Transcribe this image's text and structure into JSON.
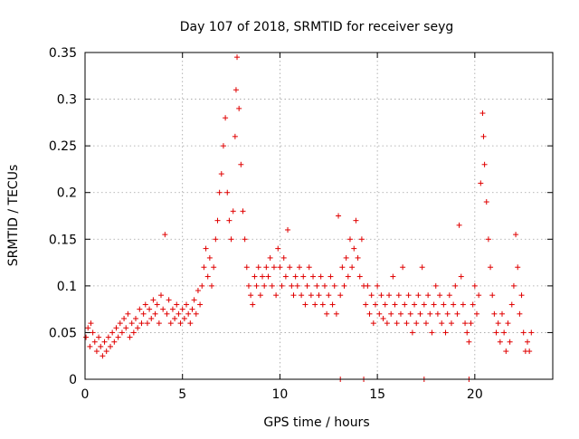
{
  "chart_data": {
    "type": "scatter",
    "title": "Day 107 of 2018, SRMTID for receiver seyg",
    "xlabel": "GPS time / hours",
    "ylabel": "SRMTID / TECUs",
    "xlim": [
      0,
      24
    ],
    "ylim": [
      0,
      0.35
    ],
    "xticks": [
      0,
      5,
      10,
      15,
      20
    ],
    "xtick_labels": [
      "0",
      "5",
      "10",
      "15",
      "20"
    ],
    "yticks": [
      0,
      0.05,
      0.1,
      0.15,
      0.2,
      0.25,
      0.3,
      0.35
    ],
    "ytick_labels": [
      "0",
      "0.05",
      "0.1",
      "0.15",
      "0.2",
      "0.25",
      "0.3",
      "0.35"
    ],
    "grid": true,
    "marker": "+",
    "color": "#e00000",
    "series": [
      {
        "name": "SRMTID",
        "points": [
          [
            0.05,
            0.045
          ],
          [
            0.15,
            0.055
          ],
          [
            0.25,
            0.035
          ],
          [
            0.3,
            0.06
          ],
          [
            0.4,
            0.05
          ],
          [
            0.5,
            0.04
          ],
          [
            0.6,
            0.03
          ],
          [
            0.7,
            0.045
          ],
          [
            0.8,
            0.035
          ],
          [
            0.9,
            0.025
          ],
          [
            1.0,
            0.04
          ],
          [
            1.1,
            0.03
          ],
          [
            1.2,
            0.045
          ],
          [
            1.3,
            0.035
          ],
          [
            1.4,
            0.05
          ],
          [
            1.5,
            0.04
          ],
          [
            1.6,
            0.055
          ],
          [
            1.7,
            0.045
          ],
          [
            1.8,
            0.06
          ],
          [
            1.9,
            0.05
          ],
          [
            2.0,
            0.065
          ],
          [
            2.1,
            0.055
          ],
          [
            2.2,
            0.07
          ],
          [
            2.3,
            0.045
          ],
          [
            2.4,
            0.06
          ],
          [
            2.5,
            0.05
          ],
          [
            2.6,
            0.065
          ],
          [
            2.7,
            0.055
          ],
          [
            2.8,
            0.075
          ],
          [
            2.9,
            0.06
          ],
          [
            3.0,
            0.07
          ],
          [
            3.1,
            0.08
          ],
          [
            3.2,
            0.06
          ],
          [
            3.3,
            0.075
          ],
          [
            3.4,
            0.065
          ],
          [
            3.5,
            0.085
          ],
          [
            3.6,
            0.07
          ],
          [
            3.7,
            0.08
          ],
          [
            3.8,
            0.06
          ],
          [
            3.9,
            0.09
          ],
          [
            4.0,
            0.075
          ],
          [
            4.1,
            0.155
          ],
          [
            4.2,
            0.07
          ],
          [
            4.3,
            0.085
          ],
          [
            4.4,
            0.06
          ],
          [
            4.5,
            0.075
          ],
          [
            4.6,
            0.065
          ],
          [
            4.7,
            0.08
          ],
          [
            4.8,
            0.07
          ],
          [
            4.9,
            0.06
          ],
          [
            5.0,
            0.075
          ],
          [
            5.1,
            0.065
          ],
          [
            5.2,
            0.08
          ],
          [
            5.3,
            0.07
          ],
          [
            5.4,
            0.06
          ],
          [
            5.5,
            0.075
          ],
          [
            5.6,
            0.085
          ],
          [
            5.7,
            0.07
          ],
          [
            5.8,
            0.095
          ],
          [
            5.9,
            0.08
          ],
          [
            6.0,
            0.1
          ],
          [
            6.1,
            0.12
          ],
          [
            6.2,
            0.14
          ],
          [
            6.3,
            0.11
          ],
          [
            6.4,
            0.13
          ],
          [
            6.5,
            0.1
          ],
          [
            6.6,
            0.12
          ],
          [
            6.7,
            0.15
          ],
          [
            6.8,
            0.17
          ],
          [
            6.9,
            0.2
          ],
          [
            7.0,
            0.22
          ],
          [
            7.1,
            0.25
          ],
          [
            7.2,
            0.28
          ],
          [
            7.3,
            0.2
          ],
          [
            7.4,
            0.17
          ],
          [
            7.5,
            0.15
          ],
          [
            7.6,
            0.18
          ],
          [
            7.7,
            0.26
          ],
          [
            7.75,
            0.31
          ],
          [
            7.8,
            0.345
          ],
          [
            7.9,
            0.29
          ],
          [
            8.0,
            0.23
          ],
          [
            8.1,
            0.18
          ],
          [
            8.2,
            0.15
          ],
          [
            8.3,
            0.12
          ],
          [
            8.4,
            0.1
          ],
          [
            8.5,
            0.09
          ],
          [
            8.6,
            0.08
          ],
          [
            8.7,
            0.11
          ],
          [
            8.8,
            0.1
          ],
          [
            8.9,
            0.12
          ],
          [
            9.0,
            0.09
          ],
          [
            9.1,
            0.11
          ],
          [
            9.2,
            0.1
          ],
          [
            9.3,
            0.12
          ],
          [
            9.4,
            0.11
          ],
          [
            9.5,
            0.13
          ],
          [
            9.6,
            0.1
          ],
          [
            9.7,
            0.12
          ],
          [
            9.8,
            0.09
          ],
          [
            9.9,
            0.14
          ],
          [
            10.0,
            0.12
          ],
          [
            10.1,
            0.1
          ],
          [
            10.2,
            0.13
          ],
          [
            10.3,
            0.11
          ],
          [
            10.4,
            0.16
          ],
          [
            10.5,
            0.12
          ],
          [
            10.6,
            0.1
          ],
          [
            10.7,
            0.09
          ],
          [
            10.8,
            0.11
          ],
          [
            10.9,
            0.1
          ],
          [
            11.0,
            0.12
          ],
          [
            11.1,
            0.09
          ],
          [
            11.2,
            0.11
          ],
          [
            11.3,
            0.08
          ],
          [
            11.4,
            0.1
          ],
          [
            11.5,
            0.12
          ],
          [
            11.6,
            0.09
          ],
          [
            11.7,
            0.11
          ],
          [
            11.8,
            0.08
          ],
          [
            11.9,
            0.1
          ],
          [
            12.0,
            0.09
          ],
          [
            12.1,
            0.11
          ],
          [
            12.2,
            0.08
          ],
          [
            12.3,
            0.1
          ],
          [
            12.4,
            0.07
          ],
          [
            12.5,
            0.09
          ],
          [
            12.6,
            0.11
          ],
          [
            12.7,
            0.08
          ],
          [
            12.8,
            0.1
          ],
          [
            12.9,
            0.07
          ],
          [
            13.0,
            0.175
          ],
          [
            13.1,
            0.09
          ],
          [
            13.2,
            0.12
          ],
          [
            13.3,
            0.1
          ],
          [
            13.4,
            0.13
          ],
          [
            13.5,
            0.11
          ],
          [
            13.6,
            0.15
          ],
          [
            13.7,
            0.12
          ],
          [
            13.8,
            0.14
          ],
          [
            13.9,
            0.17
          ],
          [
            14.0,
            0.13
          ],
          [
            14.1,
            0.11
          ],
          [
            14.2,
            0.15
          ],
          [
            14.3,
            0.1
          ],
          [
            14.4,
            0.08
          ],
          [
            14.5,
            0.1
          ],
          [
            14.6,
            0.07
          ],
          [
            14.7,
            0.09
          ],
          [
            14.8,
            0.06
          ],
          [
            14.9,
            0.08
          ],
          [
            15.0,
            0.1
          ],
          [
            15.1,
            0.07
          ],
          [
            15.2,
            0.09
          ],
          [
            15.3,
            0.065
          ],
          [
            15.4,
            0.08
          ],
          [
            15.5,
            0.06
          ],
          [
            15.6,
            0.09
          ],
          [
            15.7,
            0.07
          ],
          [
            15.8,
            0.11
          ],
          [
            15.9,
            0.08
          ],
          [
            16.0,
            0.06
          ],
          [
            16.1,
            0.09
          ],
          [
            16.2,
            0.07
          ],
          [
            16.3,
            0.12
          ],
          [
            16.4,
            0.08
          ],
          [
            16.5,
            0.06
          ],
          [
            16.6,
            0.09
          ],
          [
            16.7,
            0.07
          ],
          [
            16.8,
            0.05
          ],
          [
            16.9,
            0.08
          ],
          [
            17.0,
            0.06
          ],
          [
            17.1,
            0.09
          ],
          [
            17.2,
            0.07
          ],
          [
            17.3,
            0.12
          ],
          [
            17.4,
            0.08
          ],
          [
            17.5,
            0.06
          ],
          [
            17.6,
            0.09
          ],
          [
            17.7,
            0.07
          ],
          [
            17.8,
            0.05
          ],
          [
            17.9,
            0.08
          ],
          [
            18.0,
            0.1
          ],
          [
            18.1,
            0.07
          ],
          [
            18.2,
            0.09
          ],
          [
            18.3,
            0.06
          ],
          [
            18.4,
            0.08
          ],
          [
            18.5,
            0.05
          ],
          [
            18.6,
            0.07
          ],
          [
            18.7,
            0.09
          ],
          [
            18.8,
            0.06
          ],
          [
            18.9,
            0.08
          ],
          [
            19.0,
            0.1
          ],
          [
            19.1,
            0.07
          ],
          [
            19.2,
            0.165
          ],
          [
            19.3,
            0.11
          ],
          [
            19.4,
            0.08
          ],
          [
            19.5,
            0.06
          ],
          [
            19.6,
            0.05
          ],
          [
            19.7,
            0.04
          ],
          [
            19.8,
            0.06
          ],
          [
            19.9,
            0.08
          ],
          [
            20.0,
            0.1
          ],
          [
            20.1,
            0.07
          ],
          [
            20.2,
            0.09
          ],
          [
            20.3,
            0.21
          ],
          [
            20.4,
            0.285
          ],
          [
            20.45,
            0.26
          ],
          [
            20.5,
            0.23
          ],
          [
            20.6,
            0.19
          ],
          [
            20.7,
            0.15
          ],
          [
            20.8,
            0.12
          ],
          [
            20.9,
            0.09
          ],
          [
            21.0,
            0.07
          ],
          [
            21.1,
            0.05
          ],
          [
            21.2,
            0.06
          ],
          [
            21.3,
            0.04
          ],
          [
            21.4,
            0.07
          ],
          [
            21.5,
            0.05
          ],
          [
            21.6,
            0.03
          ],
          [
            21.7,
            0.06
          ],
          [
            21.8,
            0.04
          ],
          [
            21.9,
            0.08
          ],
          [
            22.0,
            0.1
          ],
          [
            22.1,
            0.155
          ],
          [
            22.2,
            0.12
          ],
          [
            22.3,
            0.07
          ],
          [
            22.4,
            0.09
          ],
          [
            22.5,
            0.05
          ],
          [
            22.6,
            0.03
          ],
          [
            22.7,
            0.04
          ],
          [
            22.8,
            0.03
          ],
          [
            22.9,
            0.05
          ],
          [
            13.1,
            0.0
          ],
          [
            14.3,
            0.0
          ],
          [
            17.4,
            0.0
          ],
          [
            19.7,
            0.0
          ]
        ]
      }
    ]
  }
}
